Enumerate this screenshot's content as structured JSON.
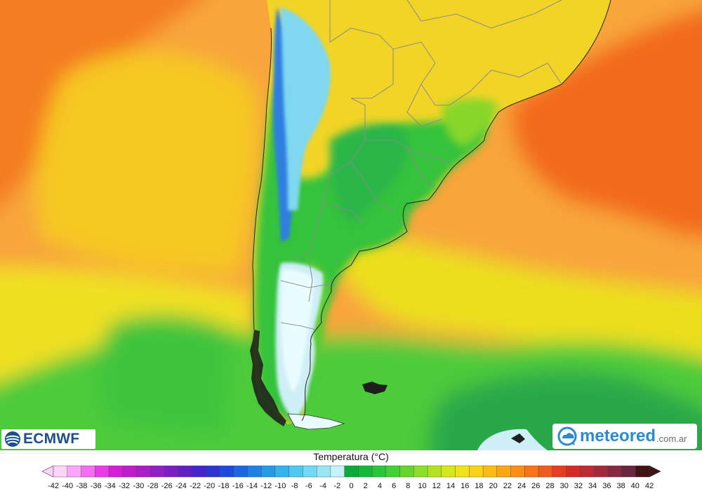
{
  "logos": {
    "left": "ECMWF",
    "right_brand": "meteored",
    "right_tld": ".com.ar"
  },
  "legend": {
    "title": "Temperatura (°C)",
    "ticks": [
      "-42",
      "-40",
      "-38",
      "-36",
      "-34",
      "-32",
      "-30",
      "-28",
      "-26",
      "-24",
      "-22",
      "-20",
      "-18",
      "-16",
      "-14",
      "-12",
      "-10",
      "-8",
      "-6",
      "-4",
      "-2",
      "0",
      "2",
      "4",
      "6",
      "8",
      "10",
      "12",
      "14",
      "16",
      "18",
      "20",
      "22",
      "24",
      "26",
      "28",
      "30",
      "32",
      "34",
      "36",
      "38",
      "40",
      "42"
    ],
    "colors": [
      "#fbd3fb",
      "#f7a6f7",
      "#f070f0",
      "#e53ce5",
      "#d51fd6",
      "#c01dc8",
      "#a81fc6",
      "#9220c4",
      "#7a1fc3",
      "#6020c5",
      "#4624cc",
      "#2f33d4",
      "#1f4bdc",
      "#1f66e1",
      "#2180e4",
      "#279ae6",
      "#35b3ea",
      "#4fc9ee",
      "#71d9f1",
      "#9ae6f5",
      "#c8f2fa",
      "#0fa83a",
      "#18b93a",
      "#2ac63a",
      "#44cf35",
      "#66d62f",
      "#8ede29",
      "#b2e323",
      "#d6e71d",
      "#f0e418",
      "#f8d316",
      "#fbbc16",
      "#fba616",
      "#fa8f18",
      "#f6741a",
      "#ef5a1e",
      "#e73c22",
      "#d52a2a",
      "#bd2a34",
      "#a2293c",
      "#862841",
      "#6a2440",
      "#3f1414"
    ]
  },
  "map": {
    "palette": {
      "ocean_warm": "#f26a1e",
      "ocean_orange": "#f8a53a",
      "ocean_yellow": "#f6dc12",
      "ocean_green": "#4ecb3b",
      "ocean_deep_green": "#2aa84a",
      "land_yellow": "#f0dc2a",
      "land_green": "#30c03e",
      "land_cold": "#8fe0ef",
      "land_snow": "#e8fbff",
      "border": "#8a8a8a"
    }
  }
}
